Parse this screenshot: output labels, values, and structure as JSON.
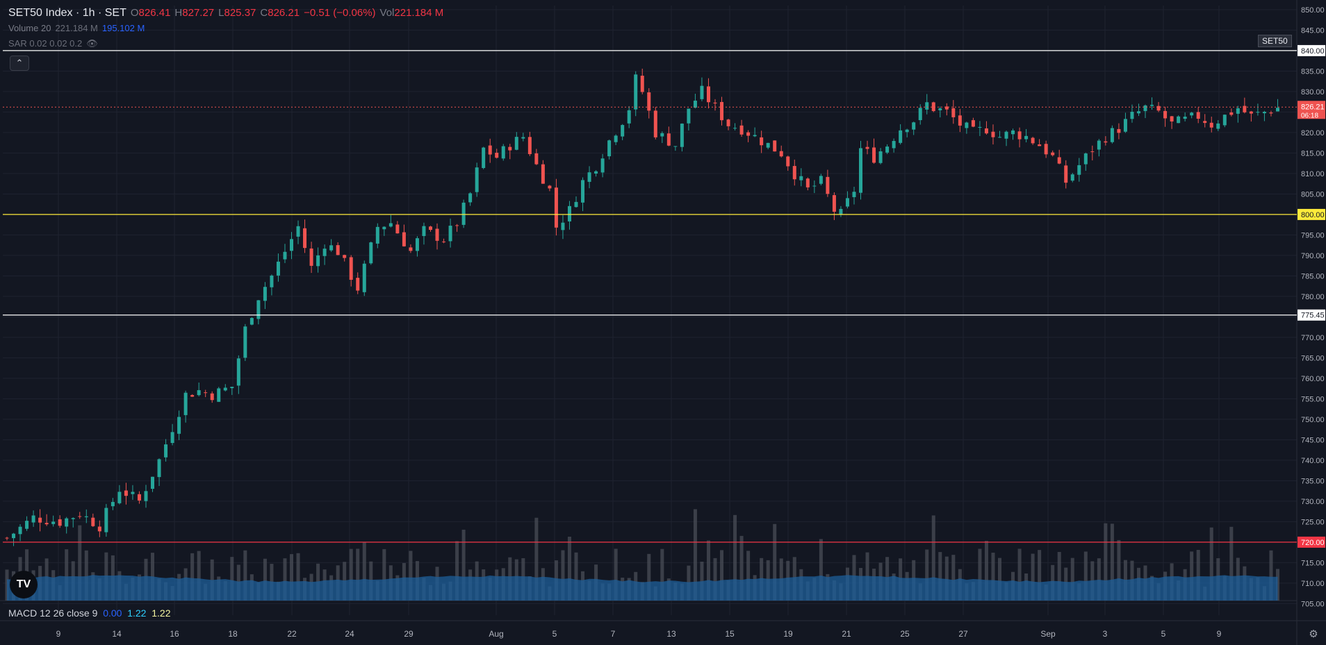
{
  "header": {
    "symbol": "SET50 Index · 1h · SET",
    "o_label": "O",
    "o_value": "826.41",
    "h_label": "H",
    "h_value": "827.27",
    "l_label": "L",
    "l_value": "825.37",
    "c_label": "C",
    "c_value": "826.21",
    "change": "−0.51 (−0.06%)",
    "vol_label": "Vol",
    "vol_value": "221.184 M"
  },
  "indicators": {
    "volume_label": "Volume 20",
    "volume_value": "221.184 M",
    "volume_ma": "195.102 M",
    "sar_label": "SAR 0.02 0.02 0.2",
    "macd_label": "MACD 12 26 close 9",
    "macd_v1": "0.00",
    "macd_v2": "1.22",
    "macd_v3": "1.22"
  },
  "price_tag": {
    "value": "826.21",
    "countdown": "06:18",
    "symbol": "SET50"
  },
  "horizontal_lines": [
    {
      "value": 840,
      "label": "840.00",
      "color": "#ffffff"
    },
    {
      "value": 800,
      "label": "800.00",
      "color": "#ffeb3b"
    },
    {
      "value": 775.45,
      "label": "775.45",
      "color": "#ffffff"
    },
    {
      "value": 720,
      "label": "720.00",
      "color": "#f23645"
    }
  ],
  "colors": {
    "up": "#26a69a",
    "down": "#ef5350",
    "bg": "#131722",
    "grid": "#1f2330",
    "volume_ma": "#2962ff"
  },
  "chart_data": {
    "type": "candlestick",
    "title": "SET50 Index · 1h · SET",
    "y_ticks": [
      "850.00",
      "845.00",
      "840.00",
      "835.00",
      "830.00",
      "825.00",
      "820.00",
      "815.00",
      "810.00",
      "805.00",
      "800.00",
      "795.00",
      "790.00",
      "785.00",
      "780.00",
      "775.00",
      "770.00",
      "765.00",
      "760.00",
      "755.00",
      "750.00",
      "745.00",
      "740.00",
      "735.00",
      "730.00",
      "725.00",
      "720.00",
      "715.00",
      "710.00",
      "705.00"
    ],
    "ylim": [
      701,
      851
    ],
    "x_ticks": [
      "9",
      "14",
      "16",
      "18",
      "22",
      "24",
      "29",
      "Aug",
      "5",
      "7",
      "13",
      "15",
      "19",
      "21",
      "25",
      "27",
      "Sep",
      "3",
      "5",
      "9"
    ],
    "price_path": [
      [
        0,
        721
      ],
      [
        4,
        726
      ],
      [
        8,
        725
      ],
      [
        11,
        727
      ],
      [
        14,
        724
      ],
      [
        17,
        733
      ],
      [
        20,
        730
      ],
      [
        23,
        740
      ],
      [
        25,
        748
      ],
      [
        27,
        756
      ],
      [
        29,
        757
      ],
      [
        31,
        756
      ],
      [
        34,
        758
      ],
      [
        36,
        772
      ],
      [
        38,
        780
      ],
      [
        40,
        785
      ],
      [
        42,
        791
      ],
      [
        44,
        797
      ],
      [
        46,
        787
      ],
      [
        48,
        793
      ],
      [
        50,
        791
      ],
      [
        53,
        782
      ],
      [
        56,
        797
      ],
      [
        58,
        798
      ],
      [
        61,
        791
      ],
      [
        63,
        796
      ],
      [
        66,
        794
      ],
      [
        68,
        798
      ],
      [
        70,
        805
      ],
      [
        72,
        816
      ],
      [
        74,
        814
      ],
      [
        76,
        817
      ],
      [
        78,
        819
      ],
      [
        80,
        812
      ],
      [
        82,
        806
      ],
      [
        83,
        797
      ],
      [
        85,
        801
      ],
      [
        87,
        808
      ],
      [
        89,
        812
      ],
      [
        91,
        818
      ],
      [
        93,
        823
      ],
      [
        94,
        826
      ],
      [
        95,
        833
      ],
      [
        96,
        830
      ],
      [
        98,
        820
      ],
      [
        100,
        818
      ],
      [
        101,
        817
      ],
      [
        103,
        826
      ],
      [
        105,
        830
      ],
      [
        107,
        826
      ],
      [
        109,
        822
      ],
      [
        111,
        821
      ],
      [
        113,
        819
      ],
      [
        115,
        817
      ],
      [
        117,
        815
      ],
      [
        119,
        810
      ],
      [
        121,
        806
      ],
      [
        123,
        808
      ],
      [
        125,
        801
      ],
      [
        126,
        800
      ],
      [
        128,
        806
      ],
      [
        129,
        816
      ],
      [
        131,
        814
      ],
      [
        133,
        817
      ],
      [
        135,
        821
      ],
      [
        137,
        823
      ],
      [
        139,
        827
      ],
      [
        140,
        826
      ],
      [
        142,
        825
      ],
      [
        144,
        822
      ],
      [
        146,
        820
      ],
      [
        148,
        821
      ],
      [
        150,
        819
      ],
      [
        152,
        820
      ],
      [
        154,
        819
      ],
      [
        156,
        817
      ],
      [
        158,
        814
      ],
      [
        160,
        808
      ],
      [
        162,
        812
      ],
      [
        164,
        816
      ],
      [
        166,
        819
      ],
      [
        168,
        821
      ],
      [
        170,
        824
      ],
      [
        172,
        826
      ],
      [
        174,
        825
      ],
      [
        176,
        822
      ],
      [
        178,
        823
      ],
      [
        180,
        824
      ],
      [
        182,
        822
      ],
      [
        184,
        824
      ],
      [
        186,
        826
      ],
      [
        188,
        824
      ],
      [
        190,
        825
      ],
      [
        192,
        826
      ]
    ],
    "candle_count": 193,
    "volume_note": "Volume histogram with 20-period moving average band along bottom of pane"
  }
}
